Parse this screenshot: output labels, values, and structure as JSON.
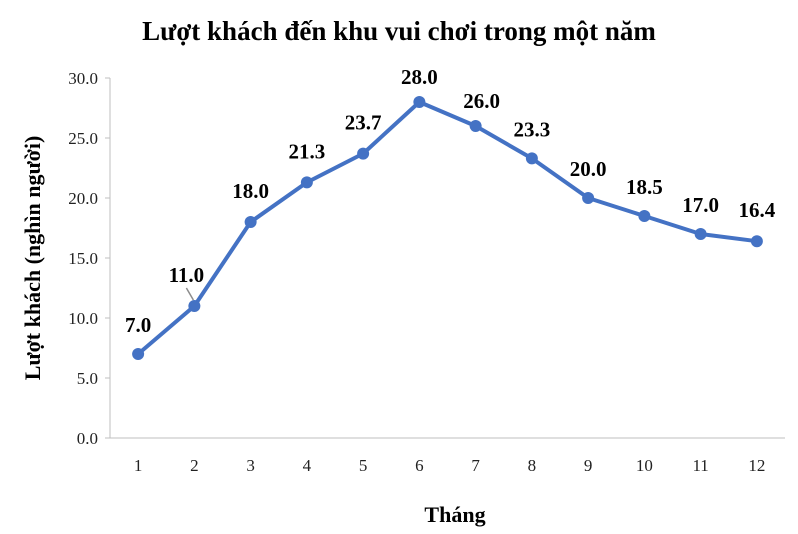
{
  "chart_data": {
    "type": "line",
    "title": "Lượt khách đến khu vui chơi trong một năm",
    "xlabel": "Tháng",
    "ylabel": "Lượt khách (nghìn người)",
    "categories": [
      "1",
      "2",
      "3",
      "4",
      "5",
      "6",
      "7",
      "8",
      "9",
      "10",
      "11",
      "12"
    ],
    "values": [
      7.0,
      11.0,
      18.0,
      21.3,
      23.7,
      28.0,
      26.0,
      23.3,
      20.0,
      18.5,
      17.0,
      16.4
    ],
    "data_labels": [
      "7.0",
      "11.0",
      "18.0",
      "21.3",
      "23.7",
      "28.0",
      "26.0",
      "23.3",
      "20.0",
      "18.5",
      "17.0",
      "16.4"
    ],
    "y_ticks": [
      "0.0",
      "5.0",
      "10.0",
      "15.0",
      "20.0",
      "25.0",
      "30.0"
    ],
    "ylim": [
      0,
      30
    ],
    "grid": false,
    "legend": "none",
    "line_color": "#4472C4"
  }
}
